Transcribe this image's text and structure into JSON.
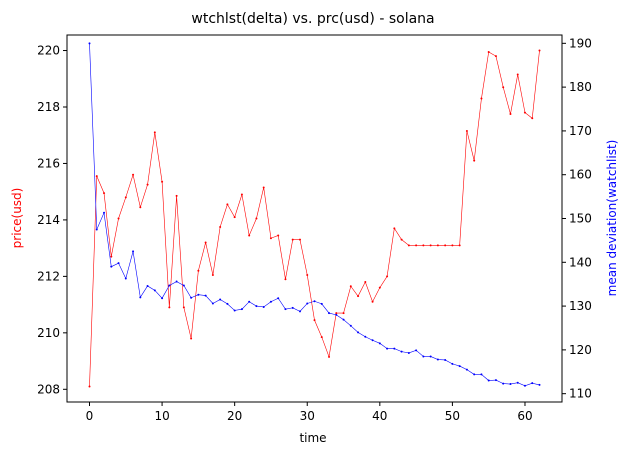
{
  "chart_data": {
    "type": "line",
    "title": "wtchlst(delta) vs. prc(usd) - solana",
    "xlabel": "time",
    "ylabel_left": "price(usd)",
    "ylabel_right": "mean deviation(watchlist)",
    "xlim": [
      -3.1,
      65.1
    ],
    "ylim_left": [
      207.55,
      220.55
    ],
    "ylim_right": [
      108.1,
      191.9
    ],
    "xticks": [
      0,
      10,
      20,
      30,
      40,
      50,
      60
    ],
    "yticks_left": [
      208,
      210,
      212,
      214,
      216,
      218,
      220
    ],
    "yticks_right": [
      110,
      120,
      130,
      140,
      150,
      160,
      170,
      180,
      190
    ],
    "colors": {
      "price": "#ff0000",
      "watchlist": "#0000ff"
    },
    "series": [
      {
        "name": "price(usd)",
        "axis": "left",
        "color": "#ff0000",
        "x": [
          0,
          1,
          2,
          3,
          4,
          5,
          6,
          7,
          8,
          9,
          10,
          11,
          12,
          13,
          14,
          15,
          16,
          17,
          18,
          19,
          20,
          21,
          22,
          23,
          24,
          25,
          26,
          27,
          28,
          29,
          30,
          31,
          32,
          33,
          34,
          35,
          36,
          37,
          38,
          39,
          40,
          41,
          42,
          43,
          44,
          45,
          46,
          47,
          48,
          49,
          50,
          51,
          52,
          53,
          54,
          55,
          56,
          57,
          58,
          59,
          60,
          61,
          62
        ],
        "values": [
          208.1,
          215.55,
          214.95,
          212.7,
          214.05,
          214.8,
          215.6,
          214.45,
          215.25,
          217.1,
          215.35,
          210.9,
          214.85,
          210.9,
          209.8,
          212.2,
          213.2,
          212.05,
          213.75,
          214.55,
          214.1,
          214.9,
          213.45,
          214.05,
          215.15,
          213.35,
          213.45,
          211.9,
          213.3,
          213.3,
          212.05,
          210.45,
          209.85,
          209.15,
          210.7,
          210.7,
          211.65,
          211.3,
          211.8,
          211.1,
          211.6,
          212.0,
          213.7,
          213.3,
          213.1,
          213.1,
          213.1,
          213.1,
          213.1,
          213.1,
          213.1,
          213.1,
          217.15,
          216.1,
          218.3,
          219.95,
          219.8,
          218.7,
          217.75,
          219.15,
          217.8,
          217.6,
          220.0
        ]
      },
      {
        "name": "mean deviation(watchlist)",
        "axis": "right",
        "color": "#0000ff",
        "x": [
          0,
          1,
          2,
          3,
          4,
          5,
          6,
          7,
          8,
          9,
          10,
          11,
          12,
          13,
          14,
          15,
          16,
          17,
          18,
          19,
          20,
          21,
          22,
          23,
          24,
          25,
          26,
          27,
          28,
          29,
          30,
          31,
          32,
          33,
          34,
          35,
          36,
          37,
          38,
          39,
          40,
          41,
          42,
          43,
          44,
          45,
          46,
          47,
          48,
          49,
          50,
          51,
          52,
          53,
          54,
          55,
          56,
          57,
          58,
          59,
          60,
          61,
          62
        ],
        "values": [
          190.0,
          147.5,
          151.3,
          139.0,
          139.8,
          136.3,
          142.5,
          132.0,
          134.6,
          133.6,
          131.8,
          134.7,
          135.6,
          134.7,
          131.9,
          132.6,
          132.4,
          130.6,
          131.5,
          130.5,
          129.0,
          129.3,
          131.0,
          130.0,
          129.8,
          131.0,
          131.8,
          129.3,
          129.6,
          128.8,
          130.6,
          131.1,
          130.5,
          128.4,
          128.0,
          126.9,
          125.5,
          124.0,
          123.0,
          122.2,
          121.5,
          120.3,
          120.3,
          119.6,
          119.3,
          119.9,
          118.5,
          118.5,
          117.8,
          117.7,
          116.8,
          116.3,
          115.5,
          114.4,
          114.4,
          113.0,
          113.1,
          112.3,
          112.2,
          112.5,
          111.8,
          112.4,
          112.0
        ]
      }
    ],
    "grid": false,
    "legend": "none"
  }
}
